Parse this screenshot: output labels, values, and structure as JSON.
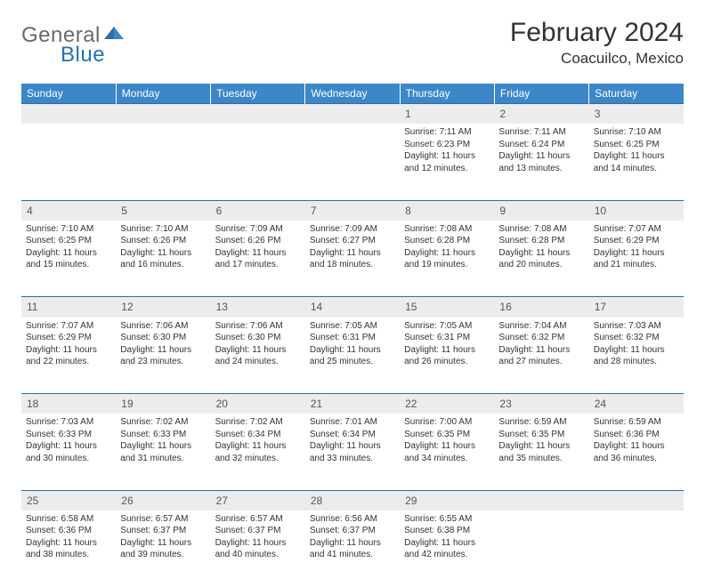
{
  "brand": {
    "name1": "General",
    "name2": "Blue"
  },
  "title": "February 2024",
  "location": "Coacuilco, Mexico",
  "weekdays": [
    "Sunday",
    "Monday",
    "Tuesday",
    "Wednesday",
    "Thursday",
    "Friday",
    "Saturday"
  ],
  "colors": {
    "header_bg": "#3b87c8",
    "header_text": "#ffffff",
    "daynum_bg": "#ececec",
    "border": "#2f6ca8",
    "brand_gray": "#6a6a6a",
    "brand_blue": "#2570b8"
  },
  "weeks": [
    [
      {
        "day": "",
        "sunrise": "",
        "sunset": "",
        "daylight": ""
      },
      {
        "day": "",
        "sunrise": "",
        "sunset": "",
        "daylight": ""
      },
      {
        "day": "",
        "sunrise": "",
        "sunset": "",
        "daylight": ""
      },
      {
        "day": "",
        "sunrise": "",
        "sunset": "",
        "daylight": ""
      },
      {
        "day": "1",
        "sunrise": "Sunrise: 7:11 AM",
        "sunset": "Sunset: 6:23 PM",
        "daylight": "Daylight: 11 hours and 12 minutes."
      },
      {
        "day": "2",
        "sunrise": "Sunrise: 7:11 AM",
        "sunset": "Sunset: 6:24 PM",
        "daylight": "Daylight: 11 hours and 13 minutes."
      },
      {
        "day": "3",
        "sunrise": "Sunrise: 7:10 AM",
        "sunset": "Sunset: 6:25 PM",
        "daylight": "Daylight: 11 hours and 14 minutes."
      }
    ],
    [
      {
        "day": "4",
        "sunrise": "Sunrise: 7:10 AM",
        "sunset": "Sunset: 6:25 PM",
        "daylight": "Daylight: 11 hours and 15 minutes."
      },
      {
        "day": "5",
        "sunrise": "Sunrise: 7:10 AM",
        "sunset": "Sunset: 6:26 PM",
        "daylight": "Daylight: 11 hours and 16 minutes."
      },
      {
        "day": "6",
        "sunrise": "Sunrise: 7:09 AM",
        "sunset": "Sunset: 6:26 PM",
        "daylight": "Daylight: 11 hours and 17 minutes."
      },
      {
        "day": "7",
        "sunrise": "Sunrise: 7:09 AM",
        "sunset": "Sunset: 6:27 PM",
        "daylight": "Daylight: 11 hours and 18 minutes."
      },
      {
        "day": "8",
        "sunrise": "Sunrise: 7:08 AM",
        "sunset": "Sunset: 6:28 PM",
        "daylight": "Daylight: 11 hours and 19 minutes."
      },
      {
        "day": "9",
        "sunrise": "Sunrise: 7:08 AM",
        "sunset": "Sunset: 6:28 PM",
        "daylight": "Daylight: 11 hours and 20 minutes."
      },
      {
        "day": "10",
        "sunrise": "Sunrise: 7:07 AM",
        "sunset": "Sunset: 6:29 PM",
        "daylight": "Daylight: 11 hours and 21 minutes."
      }
    ],
    [
      {
        "day": "11",
        "sunrise": "Sunrise: 7:07 AM",
        "sunset": "Sunset: 6:29 PM",
        "daylight": "Daylight: 11 hours and 22 minutes."
      },
      {
        "day": "12",
        "sunrise": "Sunrise: 7:06 AM",
        "sunset": "Sunset: 6:30 PM",
        "daylight": "Daylight: 11 hours and 23 minutes."
      },
      {
        "day": "13",
        "sunrise": "Sunrise: 7:06 AM",
        "sunset": "Sunset: 6:30 PM",
        "daylight": "Daylight: 11 hours and 24 minutes."
      },
      {
        "day": "14",
        "sunrise": "Sunrise: 7:05 AM",
        "sunset": "Sunset: 6:31 PM",
        "daylight": "Daylight: 11 hours and 25 minutes."
      },
      {
        "day": "15",
        "sunrise": "Sunrise: 7:05 AM",
        "sunset": "Sunset: 6:31 PM",
        "daylight": "Daylight: 11 hours and 26 minutes."
      },
      {
        "day": "16",
        "sunrise": "Sunrise: 7:04 AM",
        "sunset": "Sunset: 6:32 PM",
        "daylight": "Daylight: 11 hours and 27 minutes."
      },
      {
        "day": "17",
        "sunrise": "Sunrise: 7:03 AM",
        "sunset": "Sunset: 6:32 PM",
        "daylight": "Daylight: 11 hours and 28 minutes."
      }
    ],
    [
      {
        "day": "18",
        "sunrise": "Sunrise: 7:03 AM",
        "sunset": "Sunset: 6:33 PM",
        "daylight": "Daylight: 11 hours and 30 minutes."
      },
      {
        "day": "19",
        "sunrise": "Sunrise: 7:02 AM",
        "sunset": "Sunset: 6:33 PM",
        "daylight": "Daylight: 11 hours and 31 minutes."
      },
      {
        "day": "20",
        "sunrise": "Sunrise: 7:02 AM",
        "sunset": "Sunset: 6:34 PM",
        "daylight": "Daylight: 11 hours and 32 minutes."
      },
      {
        "day": "21",
        "sunrise": "Sunrise: 7:01 AM",
        "sunset": "Sunset: 6:34 PM",
        "daylight": "Daylight: 11 hours and 33 minutes."
      },
      {
        "day": "22",
        "sunrise": "Sunrise: 7:00 AM",
        "sunset": "Sunset: 6:35 PM",
        "daylight": "Daylight: 11 hours and 34 minutes."
      },
      {
        "day": "23",
        "sunrise": "Sunrise: 6:59 AM",
        "sunset": "Sunset: 6:35 PM",
        "daylight": "Daylight: 11 hours and 35 minutes."
      },
      {
        "day": "24",
        "sunrise": "Sunrise: 6:59 AM",
        "sunset": "Sunset: 6:36 PM",
        "daylight": "Daylight: 11 hours and 36 minutes."
      }
    ],
    [
      {
        "day": "25",
        "sunrise": "Sunrise: 6:58 AM",
        "sunset": "Sunset: 6:36 PM",
        "daylight": "Daylight: 11 hours and 38 minutes."
      },
      {
        "day": "26",
        "sunrise": "Sunrise: 6:57 AM",
        "sunset": "Sunset: 6:37 PM",
        "daylight": "Daylight: 11 hours and 39 minutes."
      },
      {
        "day": "27",
        "sunrise": "Sunrise: 6:57 AM",
        "sunset": "Sunset: 6:37 PM",
        "daylight": "Daylight: 11 hours and 40 minutes."
      },
      {
        "day": "28",
        "sunrise": "Sunrise: 6:56 AM",
        "sunset": "Sunset: 6:37 PM",
        "daylight": "Daylight: 11 hours and 41 minutes."
      },
      {
        "day": "29",
        "sunrise": "Sunrise: 6:55 AM",
        "sunset": "Sunset: 6:38 PM",
        "daylight": "Daylight: 11 hours and 42 minutes."
      },
      {
        "day": "",
        "sunrise": "",
        "sunset": "",
        "daylight": ""
      },
      {
        "day": "",
        "sunrise": "",
        "sunset": "",
        "daylight": ""
      }
    ]
  ]
}
